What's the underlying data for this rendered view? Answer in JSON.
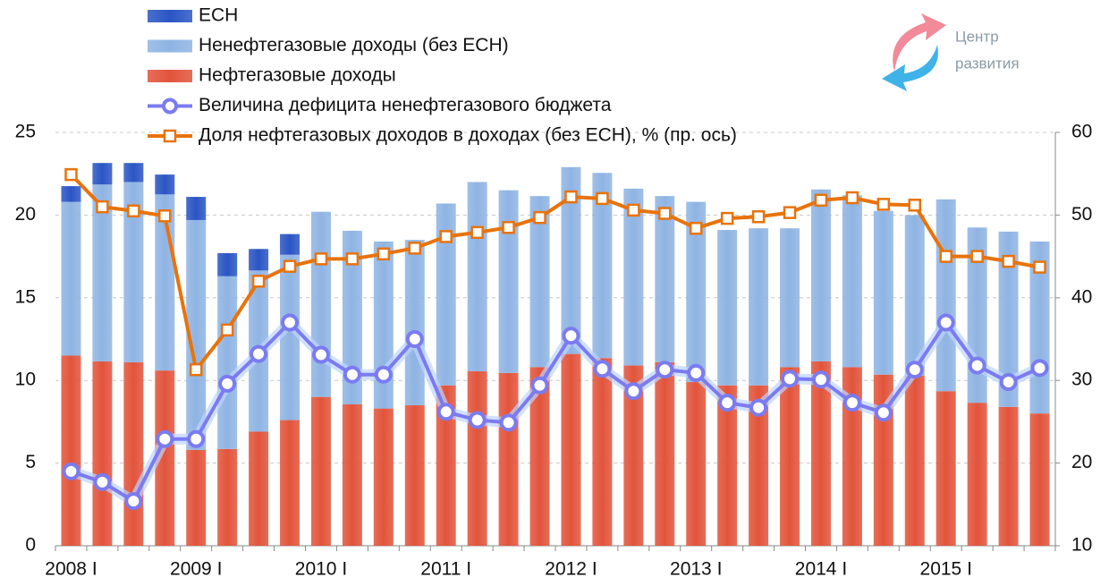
{
  "chart_data": {
    "type": "bar-line",
    "categories": [
      "2008 I",
      null,
      null,
      null,
      "2009 I",
      null,
      null,
      null,
      "2010 I",
      null,
      null,
      null,
      "2011 I",
      null,
      null,
      null,
      "2012 I",
      null,
      null,
      null,
      "2013 I",
      null,
      null,
      null,
      "2014 I",
      null,
      null,
      null,
      "2015 I",
      null,
      null,
      null
    ],
    "series": [
      {
        "name": "ЕСН",
        "type": "bar",
        "color": "#2a55c4",
        "values": [
          0.95,
          1.3,
          1.15,
          1.2,
          1.4,
          1.4,
          1.3,
          1.25,
          0,
          0,
          0,
          0,
          0,
          0,
          0,
          0,
          0,
          0,
          0,
          0,
          0,
          0,
          0,
          0,
          0,
          0,
          0,
          0,
          0,
          0,
          0,
          0
        ]
      },
      {
        "name": "Ненефтегазовые доходы (без ЕСН)",
        "type": "bar",
        "color": "#8fb4e3",
        "values": [
          9.3,
          10.7,
          10.9,
          10.65,
          13.9,
          10.45,
          9.75,
          10.0,
          11.2,
          10.5,
          10.1,
          10.0,
          11.0,
          11.45,
          11.05,
          10.35,
          11.3,
          11.2,
          10.7,
          10.05,
          10.9,
          9.4,
          9.5,
          8.4,
          10.4,
          10.4,
          9.9,
          9.7,
          11.6,
          10.6,
          10.6,
          10.4
        ]
      },
      {
        "name": "Нефтегазовые доходы",
        "type": "bar",
        "color": "#e2543b",
        "values": [
          11.5,
          11.15,
          11.1,
          10.6,
          5.8,
          5.85,
          6.9,
          7.6,
          9.0,
          8.55,
          8.3,
          8.5,
          9.7,
          10.55,
          10.45,
          10.8,
          11.6,
          11.35,
          10.9,
          11.1,
          9.9,
          9.7,
          9.7,
          10.8,
          11.15,
          10.8,
          10.35,
          10.3,
          9.35,
          8.65,
          8.4,
          8.0
        ]
      },
      {
        "name": "Величина дефицита ненефтегазового бюджета",
        "type": "line",
        "marker": "circle",
        "color": "#7b7bf0",
        "values": [
          4.5,
          3.85,
          2.7,
          6.45,
          6.45,
          9.8,
          11.6,
          13.5,
          11.55,
          10.35,
          10.35,
          12.5,
          8.1,
          7.6,
          7.45,
          9.7,
          12.7,
          10.7,
          9.35,
          10.65,
          10.45,
          8.65,
          8.35,
          10.1,
          10.05,
          8.65,
          8.05,
          10.65,
          13.5,
          10.9,
          9.9,
          10.75
        ]
      },
      {
        "name": "Доля нефтегазовых доходов в доходах (без ЕСН), %  (пр. ось)",
        "type": "line",
        "marker": "square",
        "axis": "y2",
        "color": "#e8730c",
        "values": [
          54.9,
          51.0,
          50.5,
          49.9,
          31.3,
          36.1,
          42.0,
          43.8,
          44.7,
          44.7,
          45.3,
          46.0,
          47.4,
          47.9,
          48.5,
          49.7,
          52.2,
          52.0,
          50.6,
          50.2,
          48.4,
          49.6,
          49.8,
          50.3,
          51.8,
          52.1,
          51.3,
          51.2,
          45.0,
          45.0,
          44.4,
          43.7
        ]
      }
    ],
    "ylim": [
      0,
      25
    ],
    "yticks": [
      0,
      5,
      10,
      15,
      20,
      25
    ],
    "y2lim": [
      10,
      60
    ],
    "y2ticks": [
      10,
      20,
      30,
      40,
      50,
      60
    ],
    "grid": true,
    "legend": "top-left"
  },
  "logo": {
    "line1": "Центр",
    "line2": "развития"
  }
}
